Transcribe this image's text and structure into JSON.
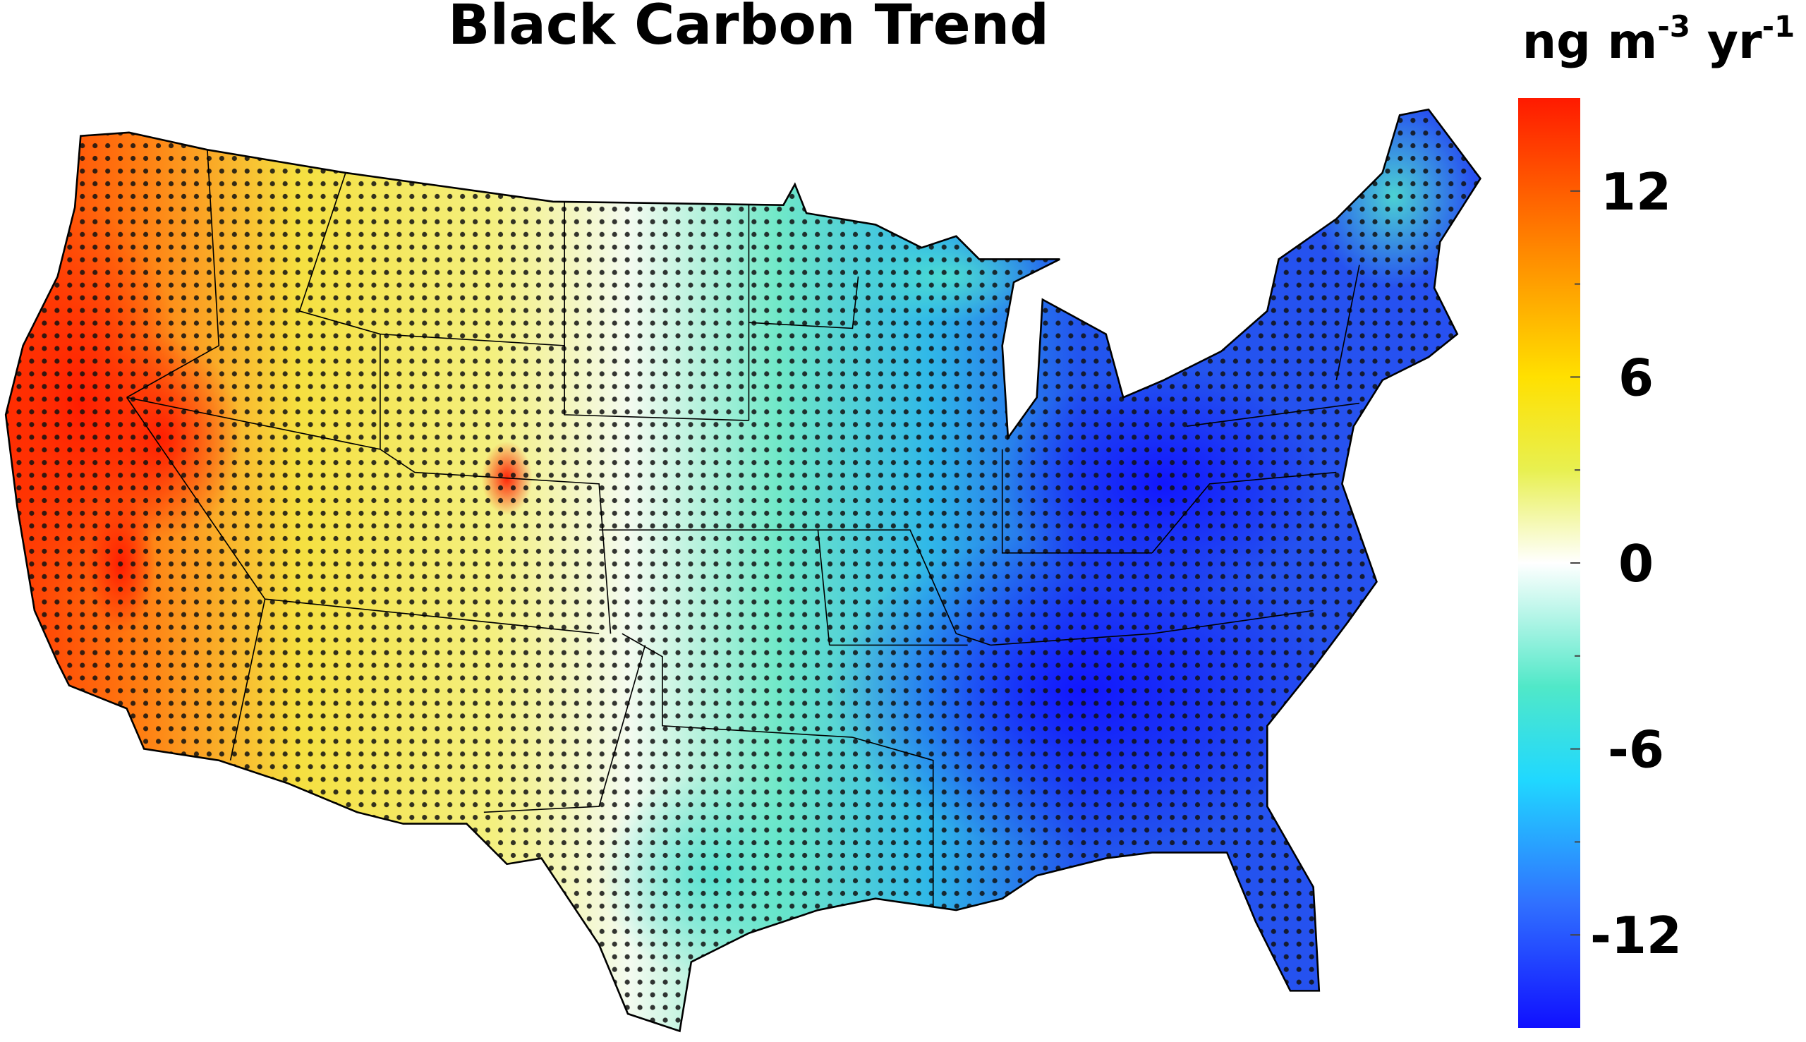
{
  "title": "Black Carbon Trend",
  "colorbar": {
    "unit": {
      "base": "ng m",
      "exp1": "-3",
      "mid": " yr",
      "exp2": "-1"
    },
    "lim": [
      -15,
      15
    ],
    "ticks": [
      12,
      6,
      0,
      -6,
      -12
    ],
    "minor_ticks": [
      9,
      3,
      -3,
      -9
    ],
    "colormap": [
      {
        "value": -15,
        "color": "#1010ff"
      },
      {
        "value": -11,
        "color": "#3070ff"
      },
      {
        "value": -7,
        "color": "#20d8ff"
      },
      {
        "value": -4,
        "color": "#50e8c8"
      },
      {
        "value": 0,
        "color": "#ffffff"
      },
      {
        "value": 3,
        "color": "#e8f050"
      },
      {
        "value": 6,
        "color": "#ffe000"
      },
      {
        "value": 10,
        "color": "#ff8a00"
      },
      {
        "value": 15,
        "color": "#ff1a00"
      }
    ]
  }
}
